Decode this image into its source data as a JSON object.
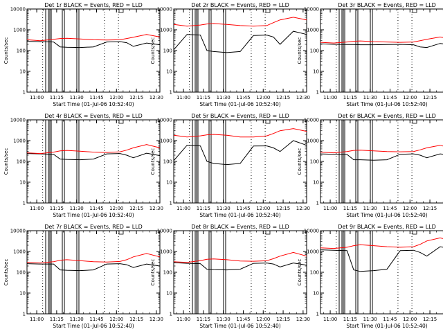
{
  "figure": {
    "xlabel": "Start Time (01-Jul-06 10:52:40)",
    "ylabel": "Counts/sec"
  },
  "common_axes": {
    "x_ticks": [
      "11:00",
      "11:15",
      "11:30",
      "11:45",
      "12:00",
      "12:15",
      "12:30"
    ],
    "x_tick_minutes": [
      7.33,
      22.33,
      37.33,
      52.33,
      67.33,
      82.33,
      97.33
    ],
    "xlim_minutes": [
      0,
      100
    ],
    "y_ticks": [
      "1",
      "10",
      "100",
      "1000",
      "10000"
    ],
    "y_tick_values": [
      1,
      10,
      100,
      1000,
      10000
    ],
    "ylim": [
      1,
      10000
    ],
    "y_scale": "log",
    "grid": false,
    "series_colors": {
      "events": "#000000",
      "lld": "#ff0000"
    },
    "dotted_vlines_minutes": [
      11.8,
      58.3,
      68.8
    ]
  },
  "chart_data": [
    {
      "type": "line",
      "title": "Det 1r BLACK = Events, RED = LLD",
      "x_minutes": [
        0,
        10,
        20,
        25,
        30,
        40,
        50,
        60,
        70,
        75,
        80,
        90,
        100
      ],
      "series": [
        {
          "key": "events",
          "values": [
            280,
            270,
            260,
            150,
            145,
            140,
            150,
            260,
            270,
            240,
            160,
            230,
            190
          ]
        },
        {
          "key": "lld",
          "values": [
            330,
            300,
            350,
            380,
            390,
            360,
            330,
            320,
            330,
            380,
            440,
            600,
            450
          ]
        }
      ]
    },
    {
      "type": "line",
      "title": "Det 2r BLACK = Events, RED = LLD",
      "x_minutes": [
        0,
        10,
        20,
        25,
        30,
        40,
        50,
        60,
        70,
        75,
        80,
        90,
        100
      ],
      "series": [
        {
          "key": "events",
          "values": [
            110,
            600,
            560,
            100,
            90,
            80,
            90,
            530,
            560,
            450,
            200,
            850,
            600
          ]
        },
        {
          "key": "lld",
          "values": [
            1800,
            1500,
            1700,
            1900,
            2000,
            1800,
            1600,
            1500,
            1600,
            2200,
            3000,
            4000,
            3000
          ]
        }
      ]
    },
    {
      "type": "line",
      "title": "Det 3r BLACK = Events, RED = LLD",
      "x_minutes": [
        0,
        10,
        20,
        25,
        30,
        40,
        50,
        60,
        70,
        75,
        80,
        90,
        100
      ],
      "series": [
        {
          "key": "events",
          "values": [
            210,
            200,
            195,
            195,
            190,
            190,
            195,
            200,
            190,
            150,
            140,
            220,
            180
          ]
        },
        {
          "key": "lld",
          "values": [
            250,
            230,
            260,
            280,
            290,
            270,
            260,
            250,
            260,
            300,
            350,
            450,
            350
          ]
        }
      ]
    },
    {
      "type": "line",
      "title": "Det 4r BLACK = Events, RED = LLD",
      "x_minutes": [
        0,
        10,
        20,
        25,
        30,
        40,
        50,
        60,
        70,
        75,
        80,
        90,
        100
      ],
      "series": [
        {
          "key": "events",
          "values": [
            240,
            230,
            220,
            130,
            125,
            120,
            130,
            230,
            240,
            200,
            150,
            250,
            190
          ]
        },
        {
          "key": "lld",
          "values": [
            260,
            240,
            280,
            320,
            340,
            310,
            280,
            270,
            290,
            350,
            450,
            650,
            450
          ]
        }
      ]
    },
    {
      "type": "line",
      "title": "Det 5r BLACK = Events, RED = LLD",
      "x_minutes": [
        0,
        10,
        20,
        25,
        30,
        40,
        50,
        60,
        70,
        75,
        80,
        90,
        100
      ],
      "series": [
        {
          "key": "events",
          "values": [
            110,
            600,
            560,
            100,
            80,
            70,
            80,
            550,
            560,
            450,
            300,
            1000,
            600
          ]
        },
        {
          "key": "lld",
          "values": [
            1800,
            1500,
            1700,
            1900,
            2000,
            1800,
            1500,
            1500,
            1700,
            2200,
            3000,
            3800,
            2800
          ]
        }
      ]
    },
    {
      "type": "line",
      "title": "Det 6r BLACK = Events, RED = LLD",
      "x_minutes": [
        0,
        10,
        20,
        25,
        30,
        40,
        50,
        60,
        70,
        75,
        80,
        90,
        100
      ],
      "series": [
        {
          "key": "events",
          "values": [
            230,
            220,
            215,
            120,
            120,
            115,
            120,
            220,
            230,
            200,
            150,
            230,
            190
          ]
        },
        {
          "key": "lld",
          "values": [
            280,
            260,
            300,
            340,
            350,
            320,
            300,
            290,
            300,
            360,
            450,
            600,
            420
          ]
        }
      ]
    },
    {
      "type": "line",
      "title": "Det 7r BLACK = Events, RED = LLD",
      "x_minutes": [
        0,
        10,
        20,
        25,
        30,
        40,
        50,
        60,
        70,
        75,
        80,
        90,
        100
      ],
      "series": [
        {
          "key": "events",
          "values": [
            260,
            250,
            250,
            130,
            125,
            120,
            130,
            250,
            260,
            230,
            170,
            250,
            200
          ]
        },
        {
          "key": "lld",
          "values": [
            300,
            280,
            320,
            380,
            400,
            360,
            320,
            310,
            330,
            400,
            550,
            800,
            550
          ]
        }
      ]
    },
    {
      "type": "line",
      "title": "Det 8r BLACK = Events, RED = LLD",
      "x_minutes": [
        0,
        10,
        20,
        25,
        30,
        40,
        50,
        60,
        70,
        75,
        80,
        90,
        100
      ],
      "series": [
        {
          "key": "events",
          "values": [
            290,
            270,
            260,
            140,
            135,
            130,
            140,
            270,
            280,
            250,
            180,
            280,
            220
          ]
        },
        {
          "key": "lld",
          "values": [
            320,
            300,
            360,
            420,
            440,
            400,
            350,
            340,
            360,
            450,
            600,
            900,
            600
          ]
        }
      ]
    },
    {
      "type": "line",
      "title": "Det 9r BLACK = Events, RED = LLD",
      "x_minutes": [
        0,
        10,
        20,
        25,
        30,
        40,
        50,
        60,
        70,
        75,
        80,
        90,
        100
      ],
      "series": [
        {
          "key": "events",
          "values": [
            1200,
            1150,
            1100,
            130,
            110,
            120,
            140,
            1100,
            1150,
            900,
            600,
            1700,
            1300
          ]
        },
        {
          "key": "lld",
          "values": [
            1500,
            1400,
            1600,
            1900,
            2100,
            1900,
            1700,
            1600,
            1700,
            2200,
            3200,
            4500,
            3200
          ]
        }
      ]
    }
  ]
}
